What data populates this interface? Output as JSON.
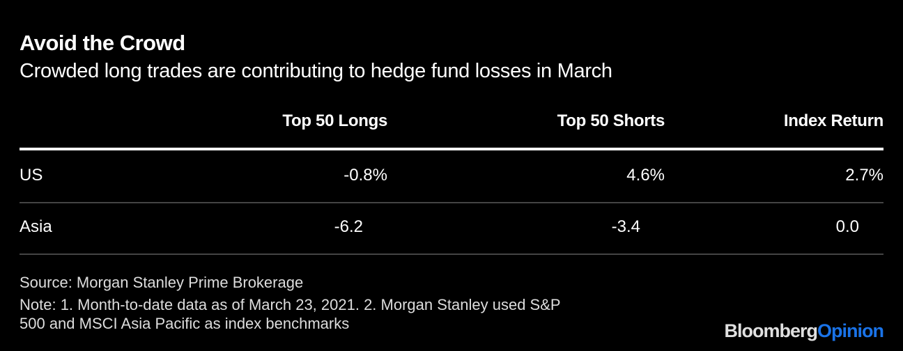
{
  "header": {
    "title": "Avoid the Crowd",
    "subtitle": "Crowded long trades are contributing to hedge fund losses in March"
  },
  "chart_data": {
    "type": "table",
    "columns": [
      "",
      "Top 50 Longs",
      "Top 50 Shorts",
      "Index Return"
    ],
    "rows": [
      {
        "label": "US",
        "values": [
          "-0.8%",
          "4.6%",
          "2.7%"
        ]
      },
      {
        "label": "Asia",
        "values": [
          "-6.2",
          "-3.4",
          "0.0"
        ]
      }
    ]
  },
  "footer": {
    "source": "Source: Morgan Stanley Prime Brokerage",
    "note_line1": "Note: 1. Month-to-date data as of March 23, 2021. 2. Morgan Stanley used S&P",
    "note_line2": "500 and MSCI Asia Pacific as index benchmarks"
  },
  "logo": {
    "part1": "Bloomberg",
    "part2": "Opinion",
    "colors": {
      "part1": "#e0e0e0",
      "part2": "#1a73e8"
    }
  }
}
